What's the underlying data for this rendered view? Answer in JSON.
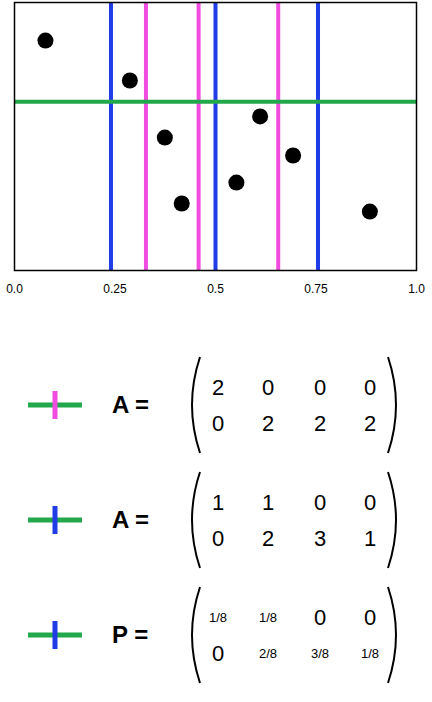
{
  "chart_data": {
    "type": "scatter",
    "x": [
      0.077,
      0.287,
      0.374,
      0.416,
      0.552,
      0.611,
      0.693,
      0.884
    ],
    "y": [
      0.858,
      0.709,
      0.496,
      0.25,
      0.328,
      0.575,
      0.429,
      0.22
    ],
    "color": "#000000",
    "marker": "circle",
    "xlim": [
      0,
      1
    ],
    "xticks": [
      {
        "value": 0,
        "label": "0.0"
      },
      0.25,
      0.5,
      0.75,
      {
        "value": 1,
        "label": "1.0"
      }
    ],
    "ylim": [
      0,
      1
    ],
    "yticks": [],
    "tick_labels": "x",
    "hlines": [
      {
        "value": 0.63,
        "color": "#20a84a"
      }
    ],
    "vlines": [
      {
        "value": 0.24,
        "color": "#1f3ce6"
      },
      {
        "value": 0.5,
        "color": "#1f3ce6"
      },
      {
        "value": 0.755,
        "color": "#1f3ce6"
      },
      {
        "value": 0.327,
        "color": "#f04de0"
      },
      {
        "value": 0.458,
        "color": "#f04de0"
      },
      {
        "value": 0.656,
        "color": "#f04de0"
      }
    ]
  },
  "matrices": [
    {
      "cross": {
        "horizontal": "#20a84a",
        "vertical": "#f04de0"
      },
      "label": "A =",
      "rows": [
        [
          2,
          0,
          0,
          0
        ],
        [
          0,
          2,
          2,
          2
        ]
      ]
    },
    {
      "cross": {
        "horizontal": "#20a84a",
        "vertical": "#1f3ce6"
      },
      "label": "A =",
      "rows": [
        [
          1,
          1,
          0,
          0
        ],
        [
          0,
          2,
          3,
          1
        ]
      ]
    },
    {
      "cross": {
        "horizontal": "#20a84a",
        "vertical": "#1f3ce6"
      },
      "label": "P =",
      "rows": [
        [
          {
            "value": 0.125,
            "label": "1/8"
          },
          {
            "value": 0.125,
            "label": "1/8"
          },
          0,
          0
        ],
        [
          0,
          {
            "value": 0.25,
            "label": "2/8"
          },
          {
            "value": 0.375,
            "label": "3/8"
          },
          {
            "value": 0.125,
            "label": "1/8"
          }
        ]
      ]
    }
  ]
}
